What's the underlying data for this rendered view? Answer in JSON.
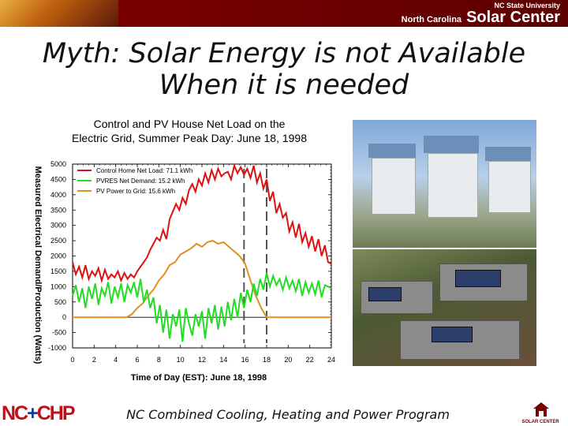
{
  "banner": {
    "university": "NC State University",
    "center_prefix": "North Carolina",
    "center_name": "Solar Center"
  },
  "slide": {
    "title_line1": "Myth: Solar Energy is not Available",
    "title_line2": "When it is needed"
  },
  "chart_data": {
    "type": "line",
    "title_line1": "Control and PV House Net Load on the",
    "title_line2": "Electric Grid, Summer Peak Day: June 18, 1998",
    "xlabel": "Time of Day (EST): June 18, 1998",
    "ylabel": "Measured Electrical Demand/Production (Watts)",
    "xlim": [
      0,
      24
    ],
    "ylim": [
      -1000,
      5000
    ],
    "xticks": [
      "0",
      "2",
      "4",
      "6",
      "8",
      "10",
      "12",
      "14",
      "16",
      "18",
      "20",
      "22",
      "24"
    ],
    "yticks": [
      "5000",
      "4500",
      "4000",
      "3500",
      "3000",
      "2500",
      "2000",
      "1500",
      "1000",
      "500",
      "0",
      "-500",
      "-1000"
    ],
    "legend_position": "top-left",
    "grid": false,
    "series": [
      {
        "name": "Control Home Net Load: 71.1 kWh",
        "color": "#dd1111",
        "x": [
          0,
          0.3,
          0.6,
          0.9,
          1.2,
          1.5,
          1.8,
          2.1,
          2.4,
          2.7,
          3.0,
          3.3,
          3.6,
          3.9,
          4.2,
          4.5,
          4.8,
          5.1,
          5.4,
          5.7,
          6.0,
          6.3,
          6.6,
          6.9,
          7.2,
          7.5,
          7.8,
          8.1,
          8.4,
          8.7,
          9.0,
          9.3,
          9.6,
          9.9,
          10.2,
          10.5,
          10.8,
          11.1,
          11.4,
          11.7,
          12.0,
          12.3,
          12.6,
          12.9,
          13.2,
          13.5,
          13.8,
          14.1,
          14.4,
          14.7,
          15.0,
          15.3,
          15.6,
          15.9,
          16.2,
          16.5,
          16.8,
          17.1,
          17.4,
          17.7,
          18.0,
          18.3,
          18.6,
          18.9,
          19.2,
          19.5,
          19.8,
          20.1,
          20.4,
          20.7,
          21.0,
          21.3,
          21.6,
          21.9,
          22.2,
          22.5,
          22.8,
          23.1,
          23.4,
          23.7,
          24.0
        ],
        "y": [
          1800,
          1400,
          1650,
          1300,
          1700,
          1250,
          1500,
          1350,
          1600,
          1200,
          1550,
          1250,
          1400,
          1300,
          1500,
          1200,
          1450,
          1250,
          1400,
          1300,
          1500,
          1650,
          1800,
          1950,
          2200,
          2400,
          2600,
          2500,
          2850,
          2550,
          3200,
          3450,
          3700,
          3500,
          3900,
          3700,
          4150,
          4350,
          4100,
          4500,
          4300,
          4700,
          4400,
          4800,
          4500,
          4850,
          4600,
          4700,
          4750,
          4500,
          4950,
          4700,
          4900,
          4650,
          4850,
          4550,
          4950,
          4400,
          4700,
          4200,
          4500,
          3800,
          4100,
          3400,
          3700,
          3250,
          3400,
          2800,
          3100,
          2600,
          3050,
          2450,
          2750,
          2300,
          2650,
          2150,
          2550,
          2000,
          2350,
          1800,
          1750
        ]
      },
      {
        "name": "PVRES Net Demand: 15.2 kWh",
        "color": "#22dd22",
        "x": [
          0,
          0.3,
          0.6,
          0.9,
          1.2,
          1.5,
          1.8,
          2.1,
          2.4,
          2.7,
          3.0,
          3.3,
          3.6,
          3.9,
          4.2,
          4.5,
          4.8,
          5.1,
          5.4,
          5.7,
          6.0,
          6.3,
          6.6,
          6.9,
          7.2,
          7.5,
          7.8,
          8.1,
          8.4,
          8.7,
          9.0,
          9.3,
          9.6,
          9.9,
          10.2,
          10.5,
          10.8,
          11.1,
          11.4,
          11.7,
          12.0,
          12.3,
          12.6,
          12.9,
          13.2,
          13.5,
          13.8,
          14.1,
          14.4,
          14.7,
          15.0,
          15.3,
          15.6,
          15.9,
          16.2,
          16.5,
          16.8,
          17.1,
          17.4,
          17.7,
          18.0,
          18.3,
          18.6,
          18.9,
          19.2,
          19.5,
          19.8,
          20.1,
          20.4,
          20.7,
          21.0,
          21.3,
          21.6,
          21.9,
          22.2,
          22.5,
          22.8,
          23.1,
          23.4,
          23.7,
          24.0
        ],
        "y": [
          700,
          1050,
          500,
          950,
          300,
          1000,
          600,
          1100,
          400,
          950,
          700,
          1150,
          450,
          1000,
          650,
          1100,
          500,
          1050,
          800,
          1150,
          650,
          1250,
          500,
          900,
          300,
          650,
          -200,
          400,
          -500,
          250,
          -700,
          100,
          -300,
          250,
          -800,
          300,
          -200,
          -600,
          100,
          -300,
          200,
          -700,
          300,
          -200,
          400,
          -400,
          350,
          -300,
          500,
          -100,
          600,
          0,
          800,
          300,
          900,
          500,
          1100,
          700,
          1250,
          900,
          1450,
          1000,
          1350,
          1050,
          1250,
          900,
          1300,
          950,
          1200,
          850,
          1250,
          700,
          1150,
          800,
          1100,
          750,
          1200,
          650,
          1050,
          1000,
          950
        ]
      },
      {
        "name": "PV Power to Grid: 15.6 kWh",
        "color": "#e09020",
        "x": [
          0,
          5.0,
          5.5,
          6.0,
          6.5,
          7.0,
          7.5,
          8.0,
          8.5,
          9.0,
          9.5,
          10.0,
          10.5,
          11.0,
          11.5,
          12.0,
          12.5,
          13.0,
          13.5,
          14.0,
          14.5,
          15.0,
          15.5,
          16.0,
          16.5,
          17.0,
          17.5,
          18.0,
          18.5,
          24.0
        ],
        "y": [
          0,
          0,
          100,
          300,
          450,
          700,
          900,
          1200,
          1400,
          1700,
          1800,
          2050,
          2150,
          2250,
          2400,
          2300,
          2450,
          2500,
          2400,
          2450,
          2300,
          2150,
          2000,
          1750,
          1200,
          700,
          300,
          0,
          0,
          0
        ]
      }
    ],
    "annotations": [
      {
        "type": "vertical-dashed-line",
        "x": 15.9
      },
      {
        "type": "vertical-dashed-line",
        "x": 18.0
      }
    ]
  },
  "photos": {
    "top": "house-photo",
    "bottom": "rooftop-photo"
  },
  "footer": {
    "program": "NC Combined Cooling, Heating and Power Program",
    "logo_left_nc": "NC",
    "logo_left_plus": "+",
    "logo_left_chp": "CHP",
    "logo_right_text": "SOLAR CENTER"
  }
}
